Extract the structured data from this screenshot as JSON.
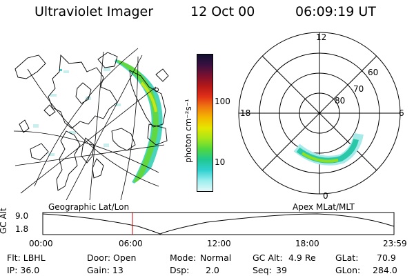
{
  "header": {
    "title": "Ultraviolet Imager",
    "date": "12 Oct 00",
    "time": "06:09:19 UT"
  },
  "colorbar": {
    "unit_label": "photon cm⁻²s⁻¹",
    "ticks": [
      "100",
      "10"
    ],
    "colors": [
      "#101030",
      "#3a1040",
      "#7a1030",
      "#b41818",
      "#e03018",
      "#f07a10",
      "#f4b800",
      "#e6e600",
      "#a6e61a",
      "#50d840",
      "#20c890",
      "#30d0d0",
      "#9aeeee",
      "#e4f8f8"
    ]
  },
  "polar": {
    "labels": {
      "top": "12",
      "left": "18",
      "right": "6",
      "bottom": "0",
      "lat60": "60",
      "lat70": "70",
      "lat80": "80"
    }
  },
  "timeline": {
    "left_title": "Geographic Lat/Lon",
    "right_title": "Apex MLat/MLT",
    "axis_label": "GC Alt",
    "ymax": "9.0",
    "ymin": "1.8",
    "ticks": [
      "00:00",
      "06:00",
      "12:00",
      "18:00",
      "23:59"
    ],
    "current_marker_color": "#cc0000"
  },
  "footer": {
    "filter": "Flt: LBHL",
    "ip": "IP: 36.0",
    "door": "Door: Open",
    "gain": "Gain: 13",
    "mode_label": "Mode:",
    "mode_value": "Normal",
    "dsp_label": "Dsp:",
    "dsp_value": "2.0",
    "gc_alt_label": "GC Alt:",
    "gc_alt_value": "4.9 Re",
    "seq_label": "Seq:",
    "seq_value": "39",
    "glat_label": "GLat:",
    "glat_value": "70.9",
    "glon_label": "GLon:",
    "glon_value": "284.0"
  }
}
